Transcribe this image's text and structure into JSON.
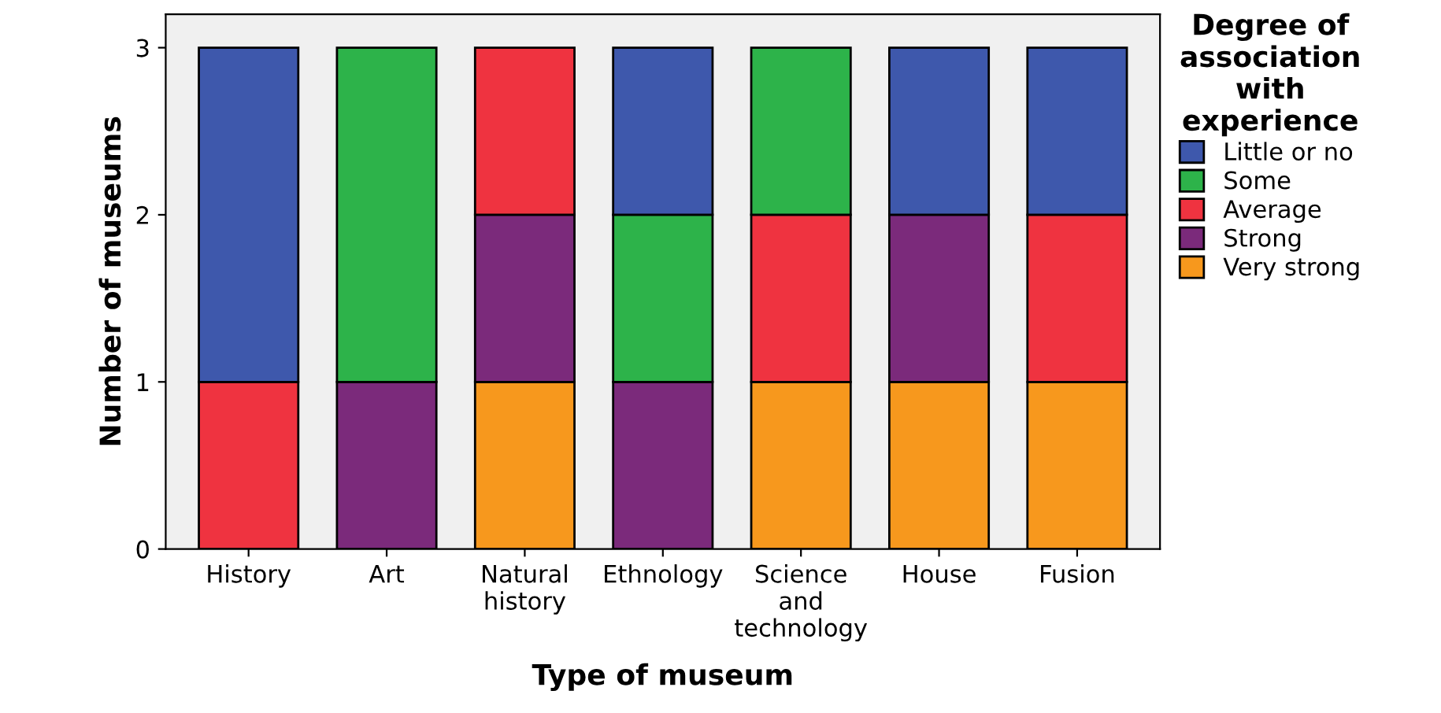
{
  "chart_data": {
    "type": "bar",
    "stacked": true,
    "xlabel": "Type of museum",
    "ylabel": "Number of museums",
    "legend_title": "Degree of\nassociation\nwith\nexperience",
    "categories": [
      "History",
      "Art",
      "Natural\nhistory",
      "Ethnology",
      "Science\nand\ntechnology",
      "House",
      "Fusion"
    ],
    "series": [
      {
        "name": "Very strong",
        "color": "#f7981d",
        "values": [
          0,
          0,
          1,
          0,
          1,
          1,
          1
        ]
      },
      {
        "name": "Strong",
        "color": "#7b2a7b",
        "values": [
          0,
          1,
          1,
          1,
          0,
          1,
          0
        ]
      },
      {
        "name": "Average",
        "color": "#ef3340",
        "values": [
          1,
          0,
          1,
          0,
          1,
          0,
          1
        ]
      },
      {
        "name": "Some",
        "color": "#2db34a",
        "values": [
          0,
          2,
          0,
          1,
          1,
          0,
          0
        ]
      },
      {
        "name": "Little or no",
        "color": "#3e58ac",
        "values": [
          2,
          0,
          0,
          1,
          0,
          1,
          1
        ]
      }
    ],
    "ylim": [
      0,
      3.2
    ],
    "yticks": [
      0,
      1,
      2,
      3
    ],
    "grid": false,
    "legend": "right"
  }
}
